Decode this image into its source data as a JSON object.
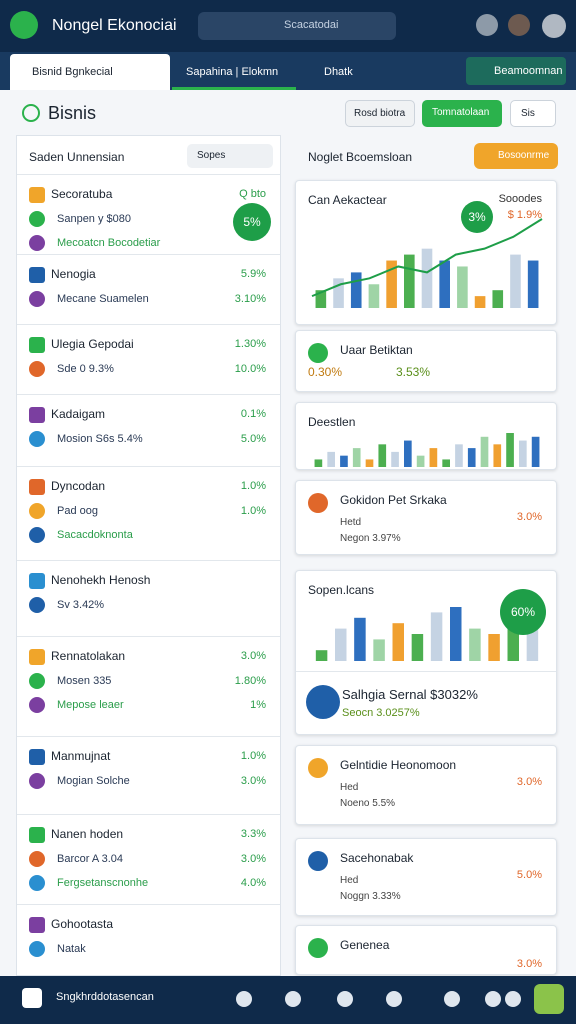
{
  "header": {
    "title": "Nongel Ekonociai",
    "search": "Scacatodai"
  },
  "tabs": [
    "Bisnid Bgnkecial",
    "Sapahina | Elokmn",
    "Dhatk",
    "Beamoomnan"
  ],
  "section": {
    "title": "Bisnis",
    "buttons": [
      "Rosd biotra",
      "Tomnatolaan",
      "Sis"
    ]
  },
  "left": {
    "title": "Saden Unnensian",
    "filter": "Sopes",
    "groups": [
      {
        "title": "Secoratuba",
        "value": "Q bto",
        "badge": "5%",
        "rows": [
          {
            "text": "Sanpen y $080"
          },
          {
            "text": "Mecoatcn Bocodetiar"
          }
        ]
      },
      {
        "title": "Nenogia",
        "value": "5.9%",
        "rows": [
          {
            "text": "Mecane Suamelen",
            "value": "3.10%"
          }
        ]
      },
      {
        "title": "Ulegia Gepodai",
        "value": "1.30%",
        "rows": [
          {
            "text": "Sde 0 9.3%",
            "value": "10.0%"
          }
        ]
      },
      {
        "title": "Kadaigam",
        "value": "0.1%",
        "rows": [
          {
            "text": "Mosion S6s 5.4%",
            "value": "5.0%"
          }
        ]
      },
      {
        "title": "Dyncodan",
        "value": "1.0%",
        "rows": [
          {
            "text": "Pad oog",
            "value": "1.0%"
          },
          {
            "text": "Sacacdoknonta"
          }
        ]
      },
      {
        "title": "Nenohekh Henosh",
        "rows": [
          {
            "text": "Sv 3.42%"
          }
        ]
      },
      {
        "title": "Rennatolakan",
        "value": "3.0%",
        "rows": [
          {
            "text": "Mosen 335",
            "value": "1.80%"
          },
          {
            "text": "Mepose leaer",
            "value": "1%"
          }
        ]
      },
      {
        "title": "Manmujnat",
        "value": "1.0%",
        "rows": [
          {
            "text": "Mogian Solche",
            "value": "3.0%"
          }
        ]
      },
      {
        "title": "Nanen hoden",
        "value": "3.3%",
        "rows": [
          {
            "text": "Barcor A 3.04",
            "value": "3.0%"
          },
          {
            "text": "Fergsetanscnonhe",
            "value": "4.0%"
          }
        ]
      },
      {
        "title": "Gohootasta",
        "rows": [
          {
            "text": "Natak"
          }
        ]
      }
    ]
  },
  "right": {
    "title": "Noglet Bcoemsloan",
    "button": "Bosoonrme",
    "cards": [
      {
        "title": "Can Aekactear",
        "side": "Sooodes",
        "side_value": "$ 1.9%",
        "badge": "3%",
        "chart": {
          "bars": [
            3,
            5,
            6,
            4,
            8,
            9,
            10,
            8,
            7,
            2,
            3,
            9,
            8
          ],
          "line": [
            2,
            4,
            5,
            7,
            6,
            9,
            10,
            12,
            15
          ]
        }
      },
      {
        "title": "Uaar Betiktan",
        "lines": [
          "0.30%",
          "3.53%"
        ]
      },
      {
        "title": "Deestlen",
        "chart": {
          "bars": [
            2,
            4,
            3,
            5,
            2,
            6,
            4,
            7,
            3,
            5,
            2,
            6,
            5,
            8,
            6,
            9,
            7,
            8
          ]
        }
      },
      {
        "title": "Gokidon Pet Srkaka",
        "lines": [
          "Hetd",
          "Negon 3.97%"
        ],
        "value": "3.0%"
      },
      {
        "title": "Sopen.lcans",
        "badge": "60%",
        "chart": {
          "bars": [
            2,
            6,
            8,
            4,
            7,
            5,
            9,
            10,
            6,
            5,
            8,
            7
          ]
        },
        "footer": "Salhgia Sernal $3032%",
        "footer_sub": "Seocn 3.0257%"
      },
      {
        "title": "Gelntidie Heonomoon",
        "lines": [
          "Hed",
          "Noeno 5.5%"
        ],
        "value": "3.0%"
      },
      {
        "title": "Sacehonabak",
        "lines": [
          "Hed",
          "Noggn 3.33%"
        ],
        "value": "5.0%"
      },
      {
        "title": "Genenea",
        "value": "3.0%"
      }
    ]
  },
  "bottom": {
    "label": "Sngkhrddotasencan"
  }
}
